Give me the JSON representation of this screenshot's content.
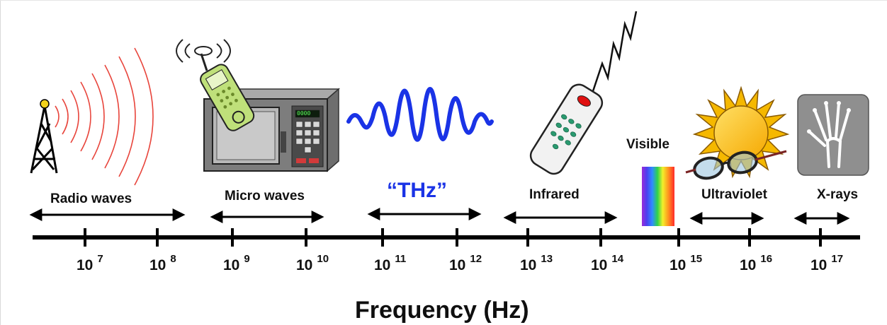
{
  "labels": {
    "radio": "Radio waves",
    "micro": "Micro waves",
    "thz": "“THz”",
    "infrared": "Infrared",
    "visible": "Visible",
    "ultraviolet": "Ultraviolet",
    "xrays": "X-rays",
    "axis_title": "Frequency (Hz)"
  },
  "ticks": [
    {
      "base": "10",
      "exp": "7"
    },
    {
      "base": "10",
      "exp": "8"
    },
    {
      "base": "10",
      "exp": "9"
    },
    {
      "base": "10",
      "exp": "10"
    },
    {
      "base": "10",
      "exp": "11"
    },
    {
      "base": "10",
      "exp": "12"
    },
    {
      "base": "10",
      "exp": "13"
    },
    {
      "base": "10",
      "exp": "14"
    },
    {
      "base": "10",
      "exp": "15"
    },
    {
      "base": "10",
      "exp": "16"
    },
    {
      "base": "10",
      "exp": "17"
    }
  ],
  "microwave_display": "0000",
  "colors": {
    "thz_blue": "#1a33e6",
    "radio_red": "#e8453c",
    "axis": "#000000"
  },
  "icons": [
    "radio-tower-icon",
    "cell-phone-icon",
    "microwave-oven-icon",
    "thz-wave-icon",
    "remote-control-icon",
    "rainbow-spectrum-icon",
    "sun-icon",
    "sunglasses-icon",
    "xray-hand-icon"
  ]
}
